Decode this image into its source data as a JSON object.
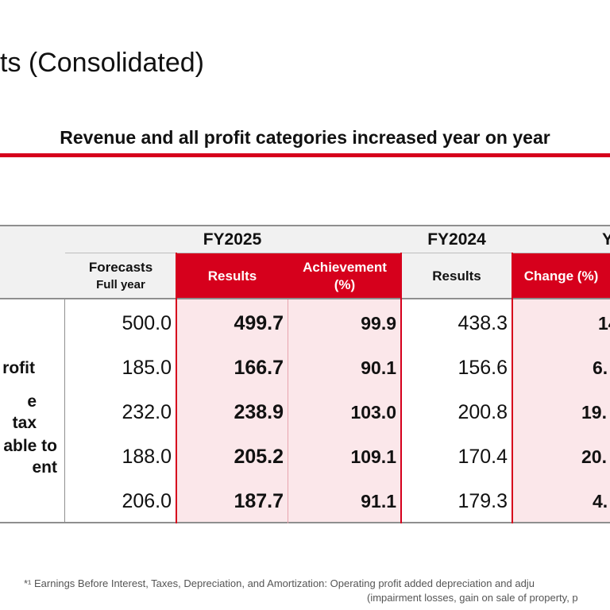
{
  "title": "ts (Consolidated)",
  "subtitle": "Revenue and all profit categories increased year on year",
  "table": {
    "fy2025_label": "FY2025",
    "fy2024_label": "FY2024",
    "yoy_label_partial": "Y",
    "col_forecasts_line1": "Forecasts",
    "col_forecasts_line2": "Full year",
    "col_results": "Results",
    "col_achievement_line1": "Achievement",
    "col_achievement_line2": "(%)",
    "col_results_2024": "Results",
    "col_change": "Change (%)",
    "rows": [
      {
        "label": "",
        "forecast": "500.0",
        "result": "499.7",
        "achievement": "99.9",
        "prev": "438.3",
        "change": "14."
      },
      {
        "label": "rofit",
        "forecast": "185.0",
        "result": "166.7",
        "achievement": "90.1",
        "prev": "156.6",
        "change": "6."
      },
      {
        "label": "e tax",
        "forecast": "232.0",
        "result": "238.9",
        "achievement": "103.0",
        "prev": "200.8",
        "change": "19."
      },
      {
        "label": "able to\nent",
        "forecast": "188.0",
        "result": "205.2",
        "achievement": "109.1",
        "prev": "170.4",
        "change": "20."
      },
      {
        "label": "",
        "forecast": "206.0",
        "result": "187.7",
        "achievement": "91.1",
        "prev": "179.3",
        "change": "4."
      }
    ]
  },
  "footnote_line1": "*¹ Earnings Before Interest, Taxes, Depreciation, and Amortization: Operating profit added depreciation and adju",
  "footnote_line2": "(impairment losses, gain on sale of property, p",
  "colors": {
    "accent_red": "#d6001c",
    "pink_fill": "#fbe7ea",
    "header_gray": "#f1f1f1"
  }
}
